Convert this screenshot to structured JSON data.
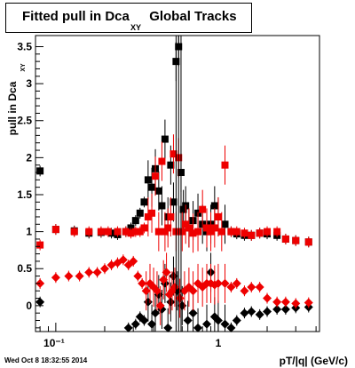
{
  "chart_data": {
    "type": "scatter",
    "title": "Fitted pull in Dca",
    "title_subscript": "XY",
    "title_suffix": "Global Tracks",
    "xlabel": "pT/|q| (GeV/c)",
    "ylabel": "pull in Dca",
    "ylabel_subscript": "XY",
    "xscale": "log",
    "xlim": [
      0.075,
      4.2
    ],
    "ylim": [
      -0.35,
      3.65
    ],
    "x_tick_labels": [
      "10⁻¹",
      "1"
    ],
    "y_tick_labels": [
      "0",
      "0.5",
      "1",
      "1.5",
      "2",
      "2.5",
      "3",
      "3.5"
    ],
    "grid": false,
    "legend": "none",
    "colors": {
      "black": "#000000",
      "red": "#ee0000"
    },
    "series": [
      {
        "color": "black",
        "marker": "square",
        "points": [
          [
            0.08,
            1.82
          ],
          [
            0.1,
            1.03
          ],
          [
            0.13,
            1.01
          ],
          [
            0.16,
            0.98
          ],
          [
            0.19,
            0.99
          ],
          [
            0.22,
            0.98
          ],
          [
            0.24,
            0.96
          ],
          [
            0.27,
            1.0
          ],
          [
            0.29,
            1.05
          ],
          [
            0.31,
            1.15
          ],
          [
            0.33,
            1.25
          ],
          [
            0.35,
            1.4
          ],
          [
            0.37,
            1.7
          ],
          [
            0.39,
            1.6
          ],
          [
            0.41,
            1.85
          ],
          [
            0.43,
            1.55
          ],
          [
            0.45,
            1.35
          ],
          [
            0.47,
            2.25
          ],
          [
            0.49,
            1.2
          ],
          [
            0.51,
            1.9
          ],
          [
            0.53,
            1.4
          ],
          [
            0.55,
            3.3
          ],
          [
            0.57,
            3.5
          ],
          [
            0.59,
            1.8
          ],
          [
            0.61,
            1.3
          ],
          [
            0.63,
            1.35
          ],
          [
            0.66,
            1.05
          ],
          [
            0.7,
            1.15
          ],
          [
            0.75,
            1.25
          ],
          [
            0.8,
            1.1
          ],
          [
            0.85,
            1.0
          ],
          [
            0.9,
            1.1
          ],
          [
            0.95,
            1.35
          ],
          [
            1.0,
            1.2
          ],
          [
            1.1,
            1.1
          ],
          [
            1.2,
            1.0
          ],
          [
            1.3,
            0.97
          ],
          [
            1.45,
            0.95
          ],
          [
            1.6,
            0.95
          ],
          [
            1.8,
            0.98
          ],
          [
            2.0,
            0.97
          ],
          [
            2.3,
            0.95
          ],
          [
            2.6,
            0.9
          ],
          [
            3.0,
            0.88
          ],
          [
            3.6,
            0.86
          ]
        ]
      },
      {
        "color": "black",
        "marker": "diamond",
        "points": [
          [
            0.08,
            0.05
          ],
          [
            0.28,
            -0.3
          ],
          [
            0.31,
            -0.25
          ],
          [
            0.33,
            -0.15
          ],
          [
            0.35,
            -0.2
          ],
          [
            0.37,
            0.05
          ],
          [
            0.39,
            -0.25
          ],
          [
            0.41,
            -0.1
          ],
          [
            0.43,
            0.15
          ],
          [
            0.45,
            -0.05
          ],
          [
            0.47,
            0.3
          ],
          [
            0.49,
            -0.3
          ],
          [
            0.51,
            0.05
          ],
          [
            0.53,
            0.4
          ],
          [
            0.56,
            0.2
          ],
          [
            0.6,
            0.0
          ],
          [
            0.65,
            -0.2
          ],
          [
            0.7,
            -0.1
          ],
          [
            0.75,
            -0.3
          ],
          [
            0.85,
            -0.25
          ],
          [
            0.9,
            0.45
          ],
          [
            0.95,
            -0.15
          ],
          [
            1.0,
            -0.2
          ],
          [
            1.1,
            -0.25
          ],
          [
            1.2,
            -0.3
          ],
          [
            1.3,
            -0.2
          ],
          [
            1.45,
            -0.1
          ],
          [
            1.6,
            -0.08
          ],
          [
            1.8,
            -0.12
          ],
          [
            2.0,
            -0.08
          ],
          [
            2.3,
            -0.05
          ],
          [
            2.6,
            -0.05
          ],
          [
            3.0,
            -0.03
          ],
          [
            3.6,
            -0.02
          ]
        ]
      },
      {
        "color": "red",
        "marker": "square",
        "points": [
          [
            0.08,
            0.82
          ],
          [
            0.1,
            1.03
          ],
          [
            0.13,
            1.0
          ],
          [
            0.16,
            1.0
          ],
          [
            0.19,
            1.0
          ],
          [
            0.21,
            1.0
          ],
          [
            0.24,
            1.0
          ],
          [
            0.27,
            1.0
          ],
          [
            0.29,
            0.98
          ],
          [
            0.31,
            1.0
          ],
          [
            0.33,
            1.0
          ],
          [
            0.35,
            1.05
          ],
          [
            0.37,
            1.2
          ],
          [
            0.39,
            1.25
          ],
          [
            0.41,
            1.75
          ],
          [
            0.43,
            1.0
          ],
          [
            0.45,
            1.95
          ],
          [
            0.47,
            1.0
          ],
          [
            0.49,
            1.05
          ],
          [
            0.51,
            1.2
          ],
          [
            0.53,
            2.05
          ],
          [
            0.55,
            1.0
          ],
          [
            0.57,
            2.0
          ],
          [
            0.6,
            1.0
          ],
          [
            0.63,
            1.1
          ],
          [
            0.66,
            1.05
          ],
          [
            0.7,
            0.98
          ],
          [
            0.75,
            1.0
          ],
          [
            0.8,
            1.3
          ],
          [
            0.85,
            1.05
          ],
          [
            0.9,
            1.0
          ],
          [
            0.95,
            1.05
          ],
          [
            1.0,
            1.2
          ],
          [
            1.05,
            1.0
          ],
          [
            1.1,
            1.9
          ],
          [
            1.2,
            1.0
          ],
          [
            1.3,
            1.0
          ],
          [
            1.45,
            0.98
          ],
          [
            1.6,
            0.95
          ],
          [
            1.8,
            0.98
          ],
          [
            2.0,
            1.0
          ],
          [
            2.3,
            1.0
          ],
          [
            2.6,
            0.9
          ],
          [
            3.0,
            0.88
          ],
          [
            3.6,
            0.86
          ]
        ]
      },
      {
        "color": "red",
        "marker": "diamond",
        "points": [
          [
            0.08,
            0.3
          ],
          [
            0.1,
            0.38
          ],
          [
            0.12,
            0.4
          ],
          [
            0.14,
            0.4
          ],
          [
            0.16,
            0.45
          ],
          [
            0.18,
            0.45
          ],
          [
            0.2,
            0.5
          ],
          [
            0.22,
            0.55
          ],
          [
            0.24,
            0.58
          ],
          [
            0.26,
            0.62
          ],
          [
            0.28,
            0.55
          ],
          [
            0.3,
            0.6
          ],
          [
            0.32,
            0.4
          ],
          [
            0.34,
            0.3
          ],
          [
            0.36,
            0.2
          ],
          [
            0.38,
            0.3
          ],
          [
            0.4,
            0.25
          ],
          [
            0.42,
            0.2
          ],
          [
            0.44,
            0.0
          ],
          [
            0.46,
            0.35
          ],
          [
            0.48,
            0.45
          ],
          [
            0.5,
            0.15
          ],
          [
            0.52,
            0.2
          ],
          [
            0.54,
            0.25
          ],
          [
            0.58,
            0.1
          ],
          [
            0.62,
            0.2
          ],
          [
            0.66,
            0.25
          ],
          [
            0.7,
            0.2
          ],
          [
            0.75,
            0.3
          ],
          [
            0.8,
            0.25
          ],
          [
            0.85,
            0.3
          ],
          [
            0.9,
            0.3
          ],
          [
            0.95,
            0.28
          ],
          [
            1.0,
            0.3
          ],
          [
            1.1,
            0.3
          ],
          [
            1.2,
            0.25
          ],
          [
            1.3,
            0.3
          ],
          [
            1.45,
            0.2
          ],
          [
            1.6,
            0.25
          ],
          [
            1.8,
            0.25
          ],
          [
            2.0,
            0.1
          ],
          [
            2.3,
            0.05
          ],
          [
            2.6,
            0.05
          ],
          [
            3.0,
            0.03
          ],
          [
            3.6,
            0.04
          ]
        ]
      }
    ]
  },
  "footer": {
    "timestamp": "Wed Oct  8 18:32:55 2014"
  }
}
